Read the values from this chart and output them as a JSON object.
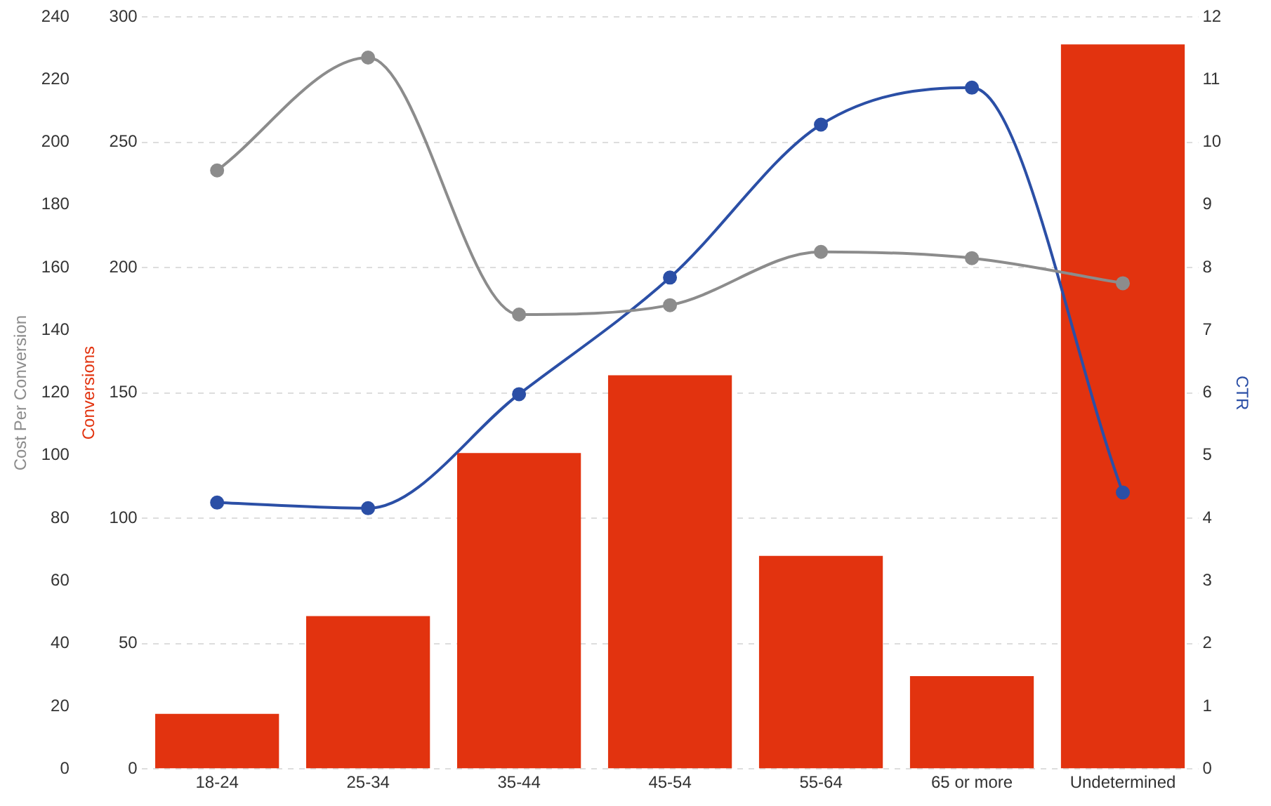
{
  "chart_data": {
    "type": "bar",
    "categories": [
      "18-24",
      "25-34",
      "35-44",
      "45-54",
      "55-64",
      "65 or more",
      "Undetermined"
    ],
    "ylabel": "Conversions",
    "y2label": "CTR",
    "y3label": "Cost Per Conversion",
    "ylim": [
      0,
      300
    ],
    "yticks": [
      0,
      50,
      100,
      150,
      200,
      250,
      300
    ],
    "y2lim": [
      0,
      12
    ],
    "y2ticks": [
      0,
      1,
      2,
      3,
      4,
      5,
      6,
      7,
      8,
      9,
      10,
      11,
      12
    ],
    "y3lim": [
      0,
      240
    ],
    "y3ticks": [
      0,
      20,
      40,
      60,
      80,
      100,
      120,
      140,
      160,
      180,
      200,
      220,
      240
    ],
    "series": [
      {
        "type": "line",
        "axis": "y3",
        "color": "#8c8c8c",
        "values": [
          191,
          227,
          145,
          148,
          165,
          163,
          155
        ]
      },
      {
        "type": "line",
        "axis": "y2",
        "color": "#2b4fa6",
        "values": [
          4.25,
          4.16,
          5.98,
          7.84,
          10.28,
          10.87,
          4.41
        ]
      },
      {
        "axis": "y",
        "color": "#e2330f",
        "values": [
          22,
          61,
          126,
          157,
          85,
          37,
          289
        ]
      }
    ],
    "grid": "y",
    "marker": "circle",
    "line_style": "solid"
  }
}
